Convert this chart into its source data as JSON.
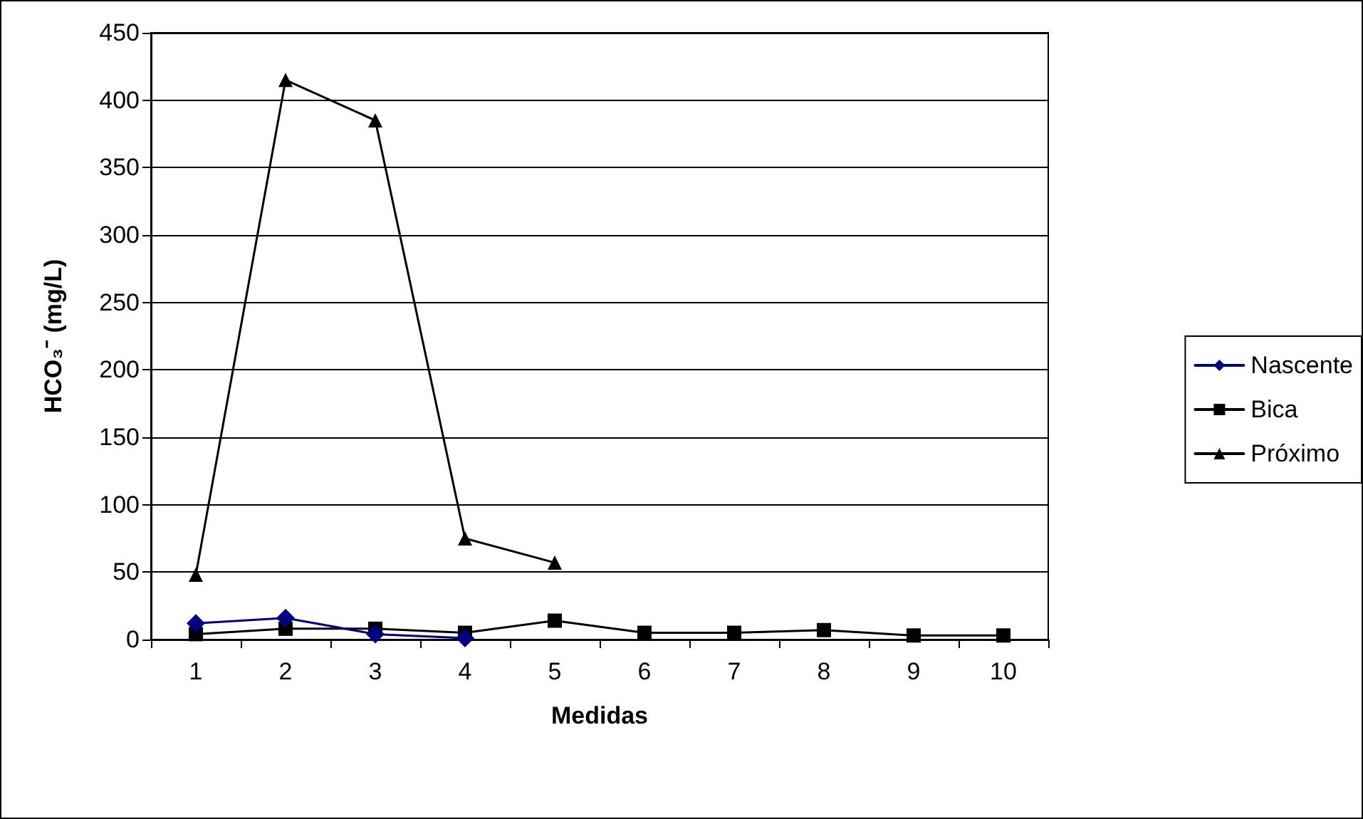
{
  "chart_data": {
    "type": "line",
    "xlabel": "Medidas",
    "ylabel": "HCO₃⁻ (mg/L)",
    "categories": [
      "1",
      "2",
      "3",
      "4",
      "5",
      "6",
      "7",
      "8",
      "9",
      "10"
    ],
    "series": [
      {
        "name": "Nascente",
        "color": "#000080",
        "marker": "diamond",
        "values": [
          12,
          16,
          4,
          1,
          null,
          null,
          null,
          null,
          null,
          null
        ]
      },
      {
        "name": "Bica",
        "color": "#000000",
        "marker": "square",
        "values": [
          4,
          8,
          8,
          5,
          14,
          5,
          5,
          7,
          3,
          3
        ]
      },
      {
        "name": "Próximo",
        "color": "#000000",
        "marker": "triangle",
        "values": [
          48,
          415,
          385,
          75,
          57,
          null,
          null,
          null,
          null,
          null
        ]
      }
    ],
    "ylim": [
      0,
      450
    ],
    "yticks": [
      0,
      50,
      100,
      150,
      200,
      250,
      300,
      350,
      400,
      450
    ],
    "grid": "y",
    "legend": "right"
  }
}
